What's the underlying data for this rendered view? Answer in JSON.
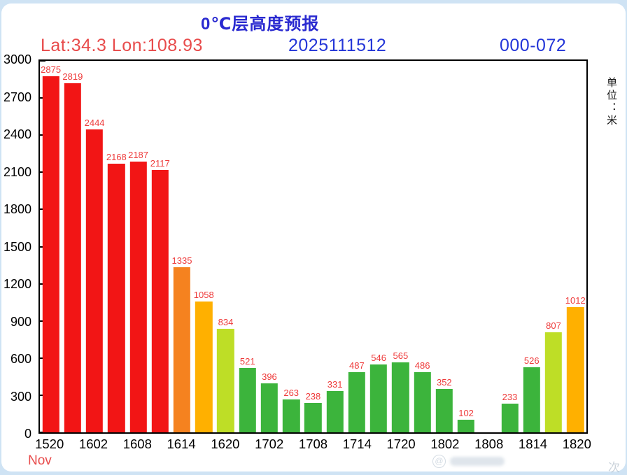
{
  "header": {
    "title": "0℃层高度预报",
    "location": "Lat:34.3 Lon:108.93",
    "datetime": "2025111512",
    "forecast_range": "000-072",
    "unit_label": "单位：米",
    "month_label": "Nov"
  },
  "colors": {
    "title_blue": "#2a2ad0",
    "header_blue": "#2436d8",
    "red_text": "#e84b4b",
    "value_label_red": "#ee3a3a",
    "bar_red": "#f21515",
    "bar_orange": "#f5821f",
    "bar_amber": "#ffb000",
    "bar_yellow_green": "#bede26",
    "bar_green": "#3cb43c"
  },
  "watermark": {
    "badge": "@",
    "corner": "次"
  },
  "chart_data": {
    "type": "bar",
    "title": "0℃层高度预报",
    "ylabel": "单位：米",
    "xlabel": "Nov",
    "ylim": [
      0,
      3000
    ],
    "grid": false,
    "y_ticks": [
      0,
      300,
      600,
      900,
      1200,
      1500,
      1800,
      2100,
      2400,
      2700,
      3000
    ],
    "x_tick_labels": [
      "1520",
      "1602",
      "1608",
      "1614",
      "1620",
      "1702",
      "1708",
      "1714",
      "1720",
      "1802",
      "1808",
      "1814",
      "1820"
    ],
    "tick_every": 2,
    "values": [
      2875,
      2819,
      2444,
      2168,
      2187,
      2117,
      1335,
      1058,
      834,
      521,
      396,
      263,
      238,
      331,
      487,
      546,
      565,
      486,
      352,
      102,
      null,
      233,
      526,
      807,
      1012
    ],
    "bar_colors": [
      "#f21515",
      "#f21515",
      "#f21515",
      "#f21515",
      "#f21515",
      "#f21515",
      "#f5821f",
      "#ffb000",
      "#bede26",
      "#3cb43c",
      "#3cb43c",
      "#3cb43c",
      "#3cb43c",
      "#3cb43c",
      "#3cb43c",
      "#3cb43c",
      "#3cb43c",
      "#3cb43c",
      "#3cb43c",
      "#3cb43c",
      null,
      "#3cb43c",
      "#3cb43c",
      "#bede26",
      "#ffb000"
    ]
  }
}
